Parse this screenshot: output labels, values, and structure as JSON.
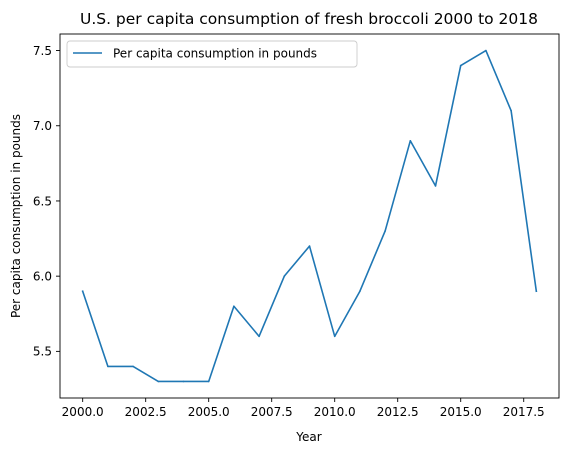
{
  "chart_data": {
    "type": "line",
    "title": "U.S. per capita consumption of fresh broccoli 2000 to 2018",
    "xlabel": "Year",
    "ylabel": "Per capita consumption in pounds",
    "xlim": [
      1999.1,
      2018.9
    ],
    "ylim": [
      5.19,
      7.61
    ],
    "x_ticks": [
      2000.0,
      2002.5,
      2005.0,
      2007.5,
      2010.0,
      2012.5,
      2015.0,
      2017.5
    ],
    "x_tick_labels": [
      "2000.0",
      "2002.5",
      "2005.0",
      "2007.5",
      "2010.0",
      "2012.5",
      "2015.0",
      "2017.5"
    ],
    "y_ticks": [
      5.5,
      6.0,
      6.5,
      7.0,
      7.5
    ],
    "y_tick_labels": [
      "5.5",
      "6.0",
      "6.5",
      "7.0",
      "7.5"
    ],
    "grid": false,
    "legend_placement": "top-left",
    "series": [
      {
        "name": "Per capita consumption in pounds",
        "color": "#1f77b4",
        "x": [
          2000,
          2001,
          2002,
          2003,
          2004,
          2005,
          2006,
          2007,
          2008,
          2009,
          2010,
          2011,
          2012,
          2013,
          2014,
          2015,
          2016,
          2017,
          2018
        ],
        "values": [
          5.9,
          5.4,
          5.4,
          5.3,
          5.3,
          5.3,
          5.8,
          5.6,
          6.0,
          6.2,
          5.6,
          5.9,
          6.3,
          6.9,
          6.6,
          7.4,
          7.5,
          7.1,
          5.9
        ]
      }
    ]
  }
}
